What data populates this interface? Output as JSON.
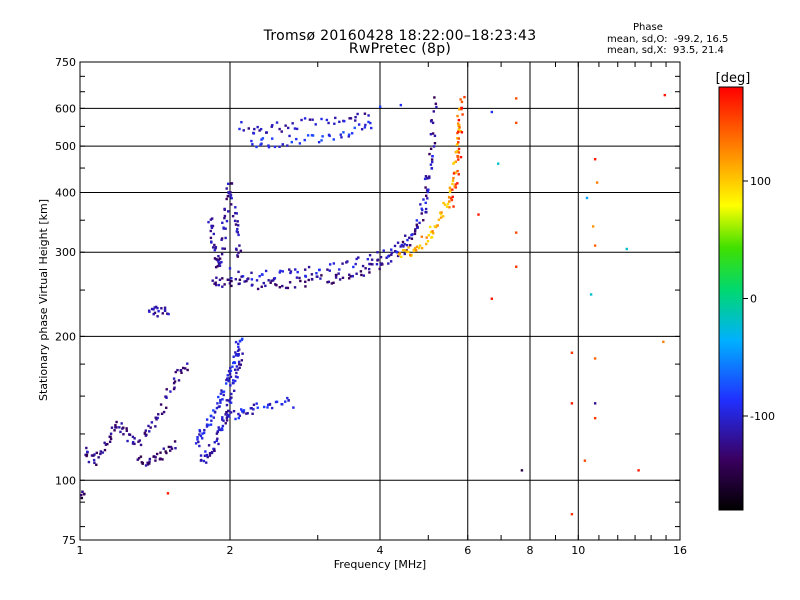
{
  "header": {
    "title_line1": "Tromsø 20160428 18:22:00–18:23:43",
    "title_line2": "RwPretec (8p)",
    "stats_heading": "Phase",
    "stats_o": "mean, sd,O:  -99.2, 16.5",
    "stats_x": "mean, sd,X:  93.5, 21.4"
  },
  "colorbar": {
    "label": "[deg]",
    "ticks": [
      {
        "value": 100,
        "label": "100"
      },
      {
        "value": 0,
        "label": "0"
      },
      {
        "value": -100,
        "label": "-100"
      }
    ],
    "range": [
      -180,
      180
    ]
  },
  "chart_data": {
    "type": "scatter",
    "xlabel": "Frequency [MHz]",
    "ylabel": "Stationary phase Virtual Height [km]",
    "xscale": "log",
    "yscale": "log",
    "xlim": [
      1,
      16
    ],
    "ylim": [
      75,
      750
    ],
    "xticks": [
      1,
      2,
      4,
      6,
      8,
      10,
      16
    ],
    "yticks": [
      75,
      100,
      200,
      300,
      400,
      500,
      600,
      750
    ],
    "grid": true,
    "color_by": "phase (deg)",
    "traces": [
      {
        "phase": -110,
        "points": [
          [
            1.75,
            110
          ],
          [
            1.8,
            112
          ],
          [
            1.82,
            115
          ],
          [
            1.86,
            118
          ],
          [
            1.9,
            125
          ],
          [
            1.92,
            130
          ],
          [
            1.95,
            135
          ],
          [
            1.98,
            140
          ],
          [
            2.0,
            148
          ],
          [
            2.02,
            155
          ],
          [
            2.05,
            165
          ],
          [
            2.08,
            175
          ],
          [
            2.1,
            185
          ]
        ]
      },
      {
        "phase": -95,
        "points": [
          [
            1.72,
            120
          ],
          [
            1.74,
            125
          ],
          [
            1.78,
            128
          ],
          [
            1.82,
            132
          ],
          [
            1.86,
            140
          ],
          [
            1.9,
            146
          ],
          [
            1.94,
            152
          ],
          [
            1.97,
            160
          ],
          [
            2.0,
            168
          ],
          [
            2.03,
            176
          ],
          [
            2.06,
            185
          ],
          [
            2.08,
            192
          ],
          [
            2.1,
            198
          ]
        ]
      },
      {
        "phase": -125,
        "points": [
          [
            1.86,
            258
          ],
          [
            1.92,
            260
          ],
          [
            2.0,
            262
          ],
          [
            2.1,
            260
          ],
          [
            2.25,
            258
          ],
          [
            2.4,
            258
          ],
          [
            2.6,
            258
          ],
          [
            2.8,
            260
          ],
          [
            3.0,
            262
          ],
          [
            3.2,
            264
          ],
          [
            3.4,
            268
          ],
          [
            3.6,
            272
          ],
          [
            3.8,
            278
          ],
          [
            4.0,
            285
          ],
          [
            4.2,
            292
          ],
          [
            4.4,
            302
          ],
          [
            4.6,
            320
          ],
          [
            4.8,
            345
          ],
          [
            4.95,
            385
          ],
          [
            5.05,
            440
          ],
          [
            5.1,
            500
          ],
          [
            5.12,
            560
          ],
          [
            5.14,
            630
          ]
        ]
      },
      {
        "phase": -105,
        "points": [
          [
            2.0,
            272
          ],
          [
            2.2,
            270
          ],
          [
            2.4,
            268
          ],
          [
            2.6,
            270
          ],
          [
            2.8,
            272
          ],
          [
            3.0,
            275
          ],
          [
            3.3,
            280
          ],
          [
            3.6,
            286
          ],
          [
            3.9,
            292
          ],
          [
            4.2,
            300
          ],
          [
            4.5,
            315
          ],
          [
            4.75,
            340
          ],
          [
            4.9,
            380
          ],
          [
            5.0,
            430
          ],
          [
            5.05,
            480
          ]
        ]
      },
      {
        "phase": 110,
        "points": [
          [
            4.4,
            295
          ],
          [
            4.55,
            300
          ],
          [
            4.7,
            305
          ],
          [
            4.85,
            315
          ],
          [
            5.0,
            325
          ],
          [
            5.15,
            340
          ],
          [
            5.3,
            355
          ],
          [
            5.45,
            375
          ],
          [
            5.55,
            400
          ],
          [
            5.62,
            430
          ],
          [
            5.68,
            470
          ],
          [
            5.72,
            510
          ],
          [
            5.76,
            560
          ],
          [
            5.8,
            610
          ]
        ]
      },
      {
        "phase": 160,
        "points": [
          [
            5.6,
            380
          ],
          [
            5.66,
            420
          ],
          [
            5.72,
            470
          ],
          [
            5.78,
            520
          ],
          [
            5.82,
            580
          ],
          [
            5.85,
            640
          ]
        ]
      },
      {
        "phase": -120,
        "points": [
          [
            1.82,
            350
          ],
          [
            1.84,
            330
          ],
          [
            1.86,
            310
          ],
          [
            1.88,
            290
          ],
          [
            1.9,
            280
          ],
          [
            1.92,
            300
          ],
          [
            1.94,
            330
          ],
          [
            1.96,
            360
          ],
          [
            1.98,
            390
          ],
          [
            2.0,
            420
          ],
          [
            2.04,
            370
          ],
          [
            2.06,
            340
          ],
          [
            2.08,
            310
          ],
          [
            2.1,
            290
          ]
        ]
      },
      {
        "phase": -90,
        "points": [
          [
            2.2,
            510
          ],
          [
            2.35,
            508
          ],
          [
            2.55,
            512
          ],
          [
            2.8,
            518
          ],
          [
            3.1,
            525
          ],
          [
            3.4,
            535
          ],
          [
            3.7,
            545
          ],
          [
            3.9,
            555
          ]
        ]
      },
      {
        "phase": -110,
        "points": [
          [
            2.1,
            550
          ],
          [
            2.25,
            545
          ],
          [
            2.4,
            548
          ],
          [
            2.6,
            552
          ],
          [
            2.9,
            560
          ],
          [
            3.2,
            565
          ],
          [
            3.5,
            570
          ],
          [
            3.8,
            572
          ]
        ]
      },
      {
        "phase": -125,
        "points": [
          [
            1.02,
            115
          ],
          [
            1.05,
            112
          ],
          [
            1.08,
            110
          ],
          [
            1.12,
            118
          ],
          [
            1.15,
            125
          ],
          [
            1.18,
            130
          ],
          [
            1.22,
            128
          ],
          [
            1.25,
            122
          ],
          [
            1.3,
            120
          ],
          [
            1.35,
            125
          ],
          [
            1.4,
            130
          ],
          [
            1.45,
            140
          ],
          [
            1.5,
            150
          ],
          [
            1.55,
            160
          ],
          [
            1.6,
            170
          ],
          [
            1.65,
            175
          ]
        ]
      },
      {
        "phase": -130,
        "points": [
          [
            1.3,
            110
          ],
          [
            1.35,
            108
          ],
          [
            1.4,
            110
          ],
          [
            1.45,
            112
          ],
          [
            1.5,
            115
          ],
          [
            1.55,
            120
          ]
        ]
      },
      {
        "phase": -115,
        "points": [
          [
            1.38,
            225
          ],
          [
            1.42,
            228
          ],
          [
            1.46,
            224
          ],
          [
            1.5,
            227
          ]
        ]
      },
      {
        "phase": -100,
        "points": [
          [
            2.0,
            135
          ],
          [
            2.08,
            138
          ],
          [
            2.15,
            140
          ],
          [
            2.25,
            142
          ],
          [
            2.4,
            145
          ],
          [
            2.55,
            146
          ],
          [
            2.7,
            145
          ]
        ]
      },
      {
        "phase": -140,
        "points": [
          [
            1.01,
            95
          ],
          [
            1.03,
            92
          ]
        ]
      }
    ],
    "scatter_points": [
      [
        6.7,
        590,
        -90
      ],
      [
        7.5,
        630,
        150
      ],
      [
        7.5,
        560,
        150
      ],
      [
        7.5,
        330,
        150
      ],
      [
        7.5,
        280,
        160
      ],
      [
        6.9,
        460,
        -20
      ],
      [
        6.3,
        360,
        170
      ],
      [
        6.7,
        240,
        170
      ],
      [
        10.8,
        470,
        170
      ],
      [
        10.9,
        420,
        130
      ],
      [
        10.7,
        340,
        120
      ],
      [
        10.8,
        310,
        140
      ],
      [
        10.4,
        390,
        -40
      ],
      [
        10.6,
        245,
        -20
      ],
      [
        12.5,
        305,
        -20
      ],
      [
        9.7,
        185,
        160
      ],
      [
        9.7,
        145,
        170
      ],
      [
        10.8,
        180,
        140
      ],
      [
        10.8,
        145,
        -120
      ],
      [
        10.8,
        135,
        160
      ],
      [
        9.7,
        85,
        160
      ],
      [
        10.3,
        110,
        150
      ],
      [
        7.7,
        105,
        -150
      ],
      [
        13.2,
        105,
        170
      ],
      [
        14.9,
        640,
        170
      ],
      [
        14.8,
        195,
        130
      ],
      [
        1.1,
        115,
        -120
      ],
      [
        1.5,
        94,
        170
      ],
      [
        4.4,
        610,
        -90
      ],
      [
        4.0,
        605,
        -80
      ]
    ]
  }
}
